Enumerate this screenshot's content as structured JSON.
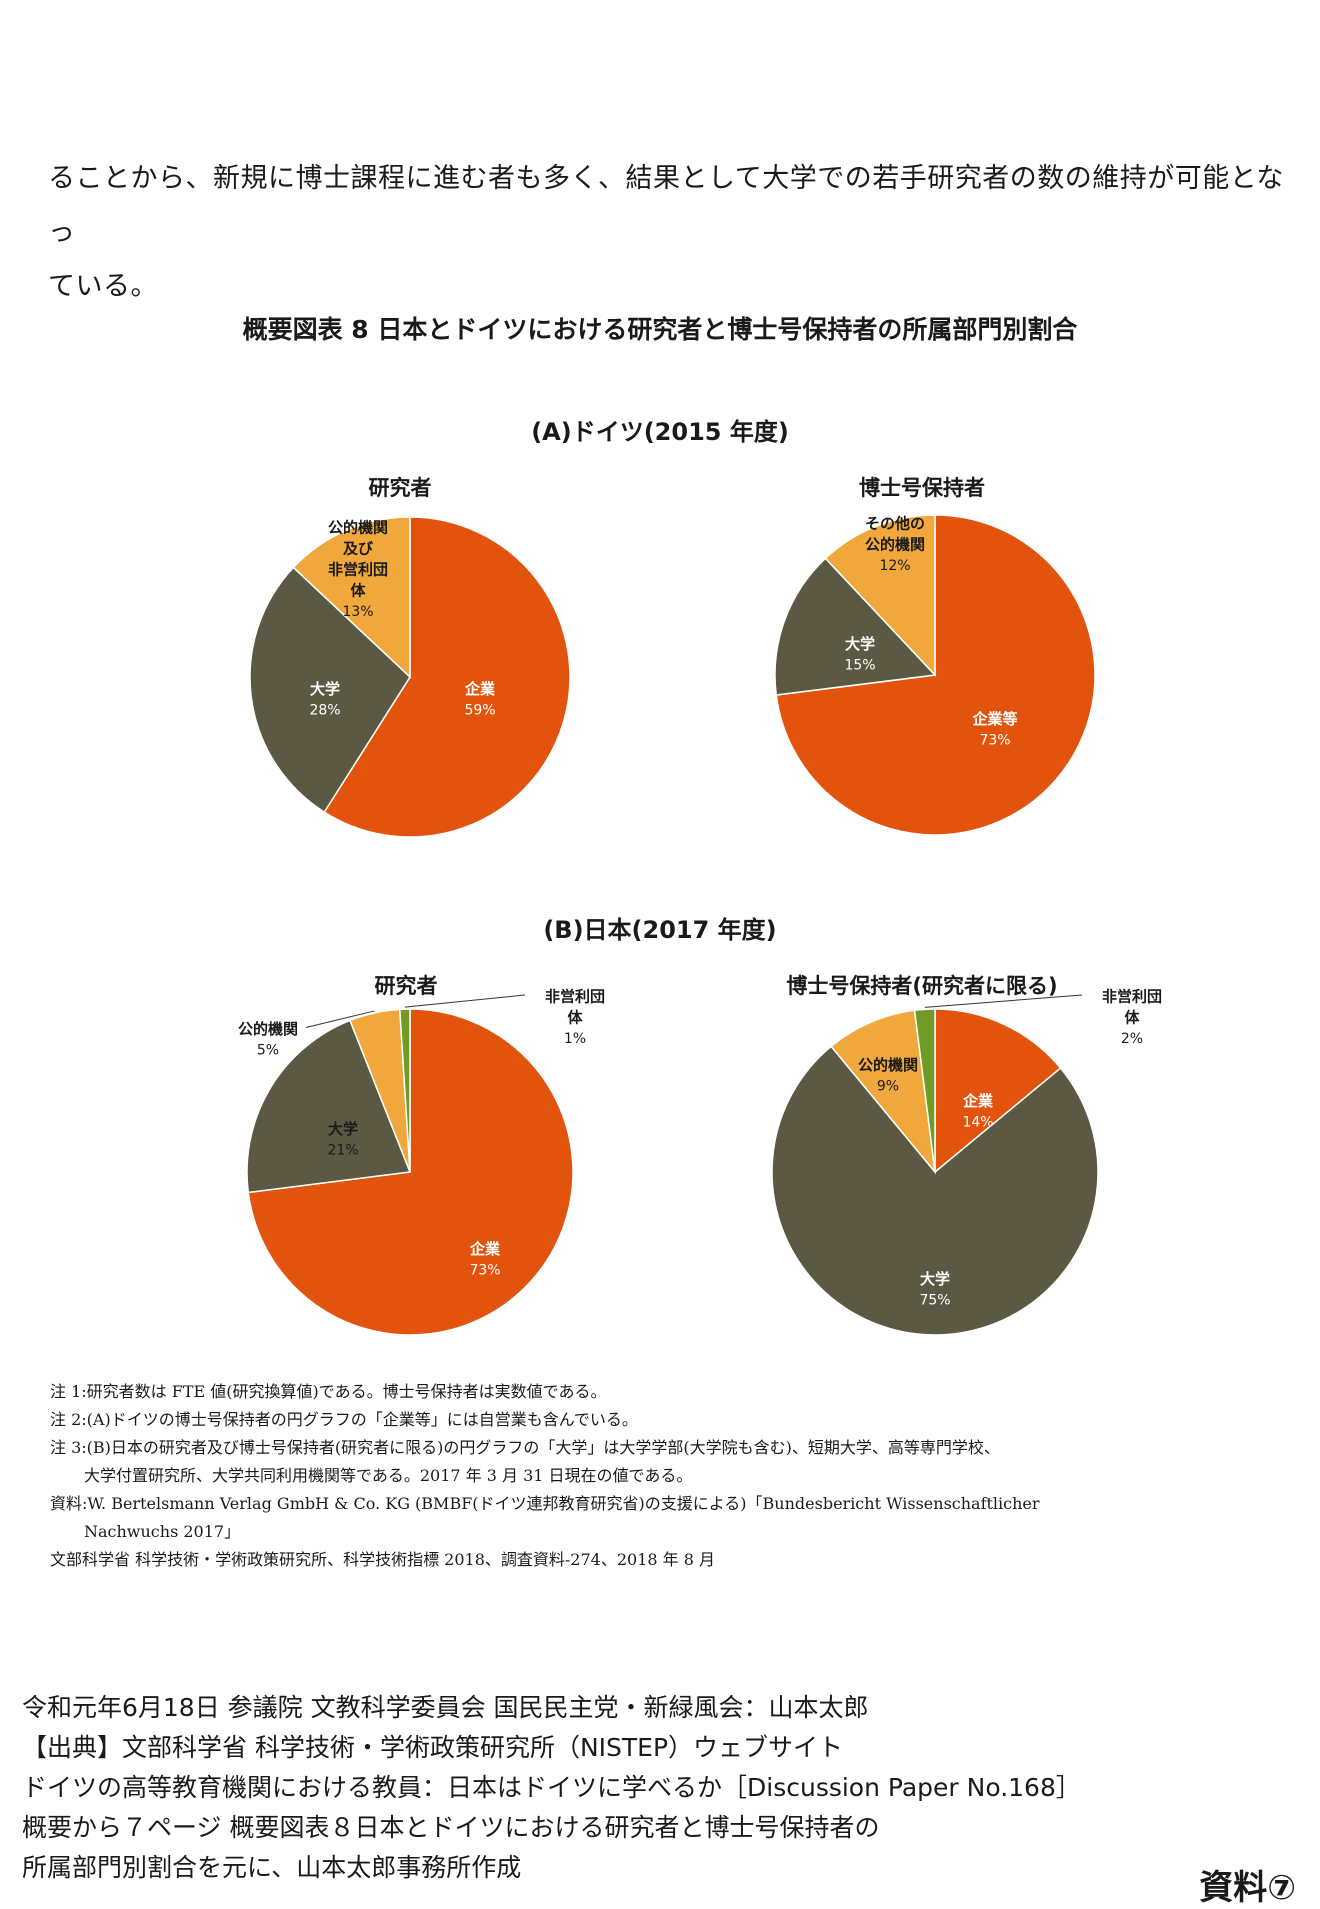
{
  "intro": {
    "line1": "ることから、新規に博士課程に進む者も多く、結果として大学での若手研究者の数の維持が可能となっ",
    "line2": "ている。"
  },
  "figure_title": "概要図表 8 日本とドイツにおける研究者と博士号保持者の所属部門別割合",
  "section_a_title": "(A)ドイツ(2015 年度)",
  "section_b_title": "(B)日本(2017 年度)",
  "colors": {
    "orange": "#E2540E",
    "olive": "#5B5843",
    "amber": "#F0A83C",
    "green": "#6F9B26"
  },
  "chart_data": [
    {
      "type": "pie",
      "title": "研究者",
      "group": "(A)ドイツ(2015 年度)",
      "slices": [
        {
          "label": "企業",
          "value": 59,
          "display": "59%",
          "color": "#E2540E"
        },
        {
          "label": "大学",
          "value": 28,
          "display": "28%",
          "color": "#5B5843"
        },
        {
          "label": "公的機関及び非営利団体",
          "value": 13,
          "display": "13%",
          "color": "#F0A83C",
          "lines": [
            "公的機関",
            "及び",
            "非営利団",
            "体"
          ]
        }
      ]
    },
    {
      "type": "pie",
      "title": "博士号保持者",
      "group": "(A)ドイツ(2015 年度)",
      "slices": [
        {
          "label": "企業等",
          "value": 73,
          "display": "73%",
          "color": "#E2540E"
        },
        {
          "label": "大学",
          "value": 15,
          "display": "15%",
          "color": "#5B5843"
        },
        {
          "label": "その他の公的機関",
          "value": 12,
          "display": "12%",
          "color": "#F0A83C",
          "lines": [
            "その他の",
            "公的機関"
          ]
        }
      ]
    },
    {
      "type": "pie",
      "title": "研究者",
      "group": "(B)日本(2017 年度)",
      "slices": [
        {
          "label": "企業",
          "value": 73,
          "display": "73%",
          "color": "#E2540E"
        },
        {
          "label": "大学",
          "value": 21,
          "display": "21%",
          "color": "#5B5843"
        },
        {
          "label": "公的機関",
          "value": 5,
          "display": "5%",
          "color": "#F0A83C"
        },
        {
          "label": "非営利団体",
          "value": 1,
          "display": "1%",
          "color": "#6F9B26",
          "lines": [
            "非営利団",
            "体"
          ]
        }
      ]
    },
    {
      "type": "pie",
      "title": "博士号保持者(研究者に限る)",
      "group": "(B)日本(2017 年度)",
      "slices": [
        {
          "label": "企業",
          "value": 14,
          "display": "14%",
          "color": "#E2540E"
        },
        {
          "label": "大学",
          "value": 75,
          "display": "75%",
          "color": "#5B5843"
        },
        {
          "label": "公的機関",
          "value": 9,
          "display": "9%",
          "color": "#F0A83C"
        },
        {
          "label": "非営利団体",
          "value": 2,
          "display": "2%",
          "color": "#6F9B26",
          "lines": [
            "非営利団",
            "体"
          ]
        }
      ]
    }
  ],
  "notes": {
    "n1": "注 1:研究者数は FTE 値(研究換算値)である。博士号保持者は実数値である。",
    "n2": "注 2:(A)ドイツの博士号保持者の円グラフの「企業等」には自営業も含んでいる。",
    "n3a": "注 3:(B)日本の研究者及び博士号保持者(研究者に限る)の円グラフの「大学」は大学学部(大学院も含む)、短期大学、高等専門学校、",
    "n3b": "大学付置研究所、大学共同利用機関等である。2017 年 3 月 31 日現在の値である。",
    "src1": "資料:W. Bertelsmann Verlag GmbH & Co. KG (BMBF(ドイツ連邦教育研究省)の支援による)「Bundesbericht Wissenschaftlicher",
    "src2": "Nachwuchs 2017」",
    "src3": "文部科学省 科学技術・学術政策研究所、科学技術指標 2018、調査資料-274、2018 年 8 月"
  },
  "footer": {
    "line1": "令和元年6月18日 参議院 文教科学委員会 国民民主党・新緑風会：山本太郎",
    "line2": "【出典】文部科学省 科学技術・学術政策研究所（NISTEP）ウェブサイト",
    "line3": "ドイツの高等教育機関における教員：日本はドイツに学べるか［Discussion Paper No.168］",
    "line4": "概要から７ページ 概要図表８日本とドイツにおける研究者と博士号保持者の",
    "line5": "所属部門別割合を元に、山本太郎事務所作成"
  },
  "document_tag": "資料⑦"
}
